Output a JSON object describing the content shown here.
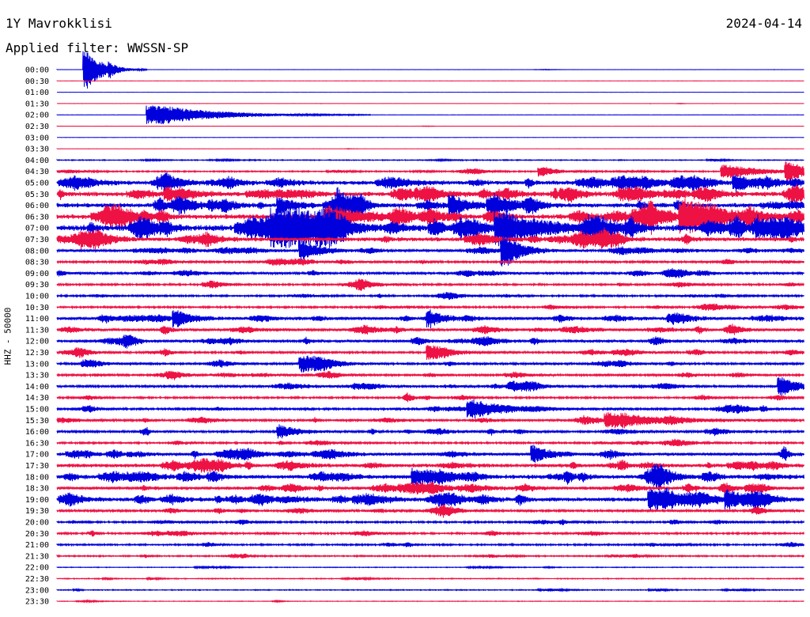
{
  "header": {
    "station": "1Y Mavrokklisi",
    "date": "2024-04-14",
    "filter_text": "Applied filter: WWSSN-SP"
  },
  "channel_label": "HHZ - 50000",
  "colors": {
    "trace_a": "#0000dd",
    "trace_b": "#ee1144"
  },
  "chart_data": {
    "type": "line",
    "title": "1Y Mavrokklisi",
    "subtitle": "Applied filter: WWSSN-SP",
    "ylabel": "HHZ - 50000",
    "row_labels": [
      "00:00",
      "00:30",
      "01:00",
      "01:30",
      "02:00",
      "02:30",
      "03:00",
      "03:30",
      "04:00",
      "04:30",
      "05:00",
      "05:30",
      "06:00",
      "06:30",
      "07:00",
      "07:30",
      "08:00",
      "08:30",
      "09:00",
      "09:30",
      "10:00",
      "10:30",
      "11:00",
      "11:30",
      "12:00",
      "12:30",
      "13:00",
      "13:30",
      "14:00",
      "14:30",
      "15:00",
      "15:30",
      "16:00",
      "16:30",
      "17:00",
      "17:30",
      "18:00",
      "18:30",
      "19:00",
      "19:30",
      "20:00",
      "20:30",
      "21:00",
      "21:30",
      "22:00",
      "22:30",
      "23:00",
      "23:30"
    ],
    "row_activity": [
      0.3,
      0.2,
      0.2,
      0.3,
      0.3,
      0.3,
      0.2,
      0.3,
      1.0,
      1.5,
      4.5,
      5.0,
      5.0,
      5.5,
      7.0,
      4.5,
      3.0,
      2.5,
      2.5,
      2.0,
      2.0,
      2.0,
      3.5,
      3.0,
      3.0,
      2.5,
      2.5,
      2.5,
      2.5,
      2.0,
      2.5,
      2.5,
      2.5,
      2.0,
      3.5,
      4.0,
      4.5,
      3.5,
      4.5,
      2.5,
      2.0,
      2.0,
      1.8,
      1.5,
      0.8,
      1.0,
      1.0,
      0.6
    ],
    "events": [
      {
        "row": 0,
        "pos": 0.04,
        "amp": 24,
        "dur": 0.02
      },
      {
        "row": 0,
        "pos": 0.07,
        "amp": 6,
        "dur": 0.005
      },
      {
        "row": 4,
        "pos": 0.14,
        "amp": 12,
        "dur": 0.07
      },
      {
        "row": 9,
        "pos": 0.65,
        "amp": 6,
        "dur": 0.02
      },
      {
        "row": 9,
        "pos": 0.9,
        "amp": 8,
        "dur": 0.04
      },
      {
        "row": 9,
        "pos": 0.98,
        "amp": 12,
        "dur": 0.02
      },
      {
        "row": 10,
        "pos": 0.91,
        "amp": 10,
        "dur": 0.02
      },
      {
        "row": 12,
        "pos": 0.3,
        "amp": 9,
        "dur": 0.02
      },
      {
        "row": 12,
        "pos": 0.38,
        "amp": 10,
        "dur": 0.02
      },
      {
        "row": 12,
        "pos": 0.53,
        "amp": 12,
        "dur": 0.02
      },
      {
        "row": 13,
        "pos": 0.37,
        "amp": 12,
        "dur": 0.04
      },
      {
        "row": 13,
        "pos": 0.85,
        "amp": 14,
        "dur": 0.06
      },
      {
        "row": 14,
        "pos": 0.6,
        "amp": 18,
        "dur": 0.05
      },
      {
        "row": 14,
        "pos": 0.3,
        "amp": 12,
        "dur": 0.05
      },
      {
        "row": 16,
        "pos": 0.33,
        "amp": 12,
        "dur": 0.02
      },
      {
        "row": 16,
        "pos": 0.6,
        "amp": 20,
        "dur": 0.02
      },
      {
        "row": 22,
        "pos": 0.16,
        "amp": 10,
        "dur": 0.02
      },
      {
        "row": 22,
        "pos": 0.5,
        "amp": 8,
        "dur": 0.02
      },
      {
        "row": 25,
        "pos": 0.5,
        "amp": 10,
        "dur": 0.02
      },
      {
        "row": 26,
        "pos": 0.33,
        "amp": 10,
        "dur": 0.02
      },
      {
        "row": 28,
        "pos": 0.97,
        "amp": 12,
        "dur": 0.02
      },
      {
        "row": 30,
        "pos": 0.56,
        "amp": 10,
        "dur": 0.04
      },
      {
        "row": 31,
        "pos": 0.75,
        "amp": 8,
        "dur": 0.06
      },
      {
        "row": 32,
        "pos": 0.3,
        "amp": 8,
        "dur": 0.02
      },
      {
        "row": 34,
        "pos": 0.64,
        "amp": 10,
        "dur": 0.02
      },
      {
        "row": 36,
        "pos": 0.48,
        "amp": 10,
        "dur": 0.02
      },
      {
        "row": 38,
        "pos": 0.8,
        "amp": 12,
        "dur": 0.03
      },
      {
        "row": 38,
        "pos": 0.9,
        "amp": 10,
        "dur": 0.02
      }
    ]
  }
}
